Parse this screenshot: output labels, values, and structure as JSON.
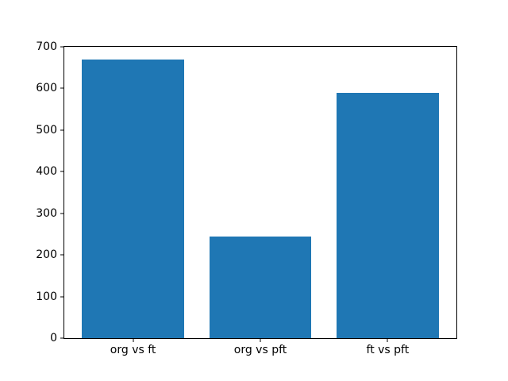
{
  "chart_data": {
    "type": "bar",
    "categories": [
      "org vs ft",
      "org vs pft",
      "ft vs pft"
    ],
    "values": [
      670,
      245,
      590
    ],
    "title": "",
    "xlabel": "",
    "ylabel": "",
    "ylim": [
      0,
      700
    ],
    "yticks": [
      0,
      100,
      200,
      300,
      400,
      500,
      600,
      700
    ],
    "bar_color": "#1f77b4",
    "bar_width_fraction": 0.8,
    "spine_color": "#000000",
    "background_color": "#ffffff",
    "grid": false,
    "legend": null
  }
}
